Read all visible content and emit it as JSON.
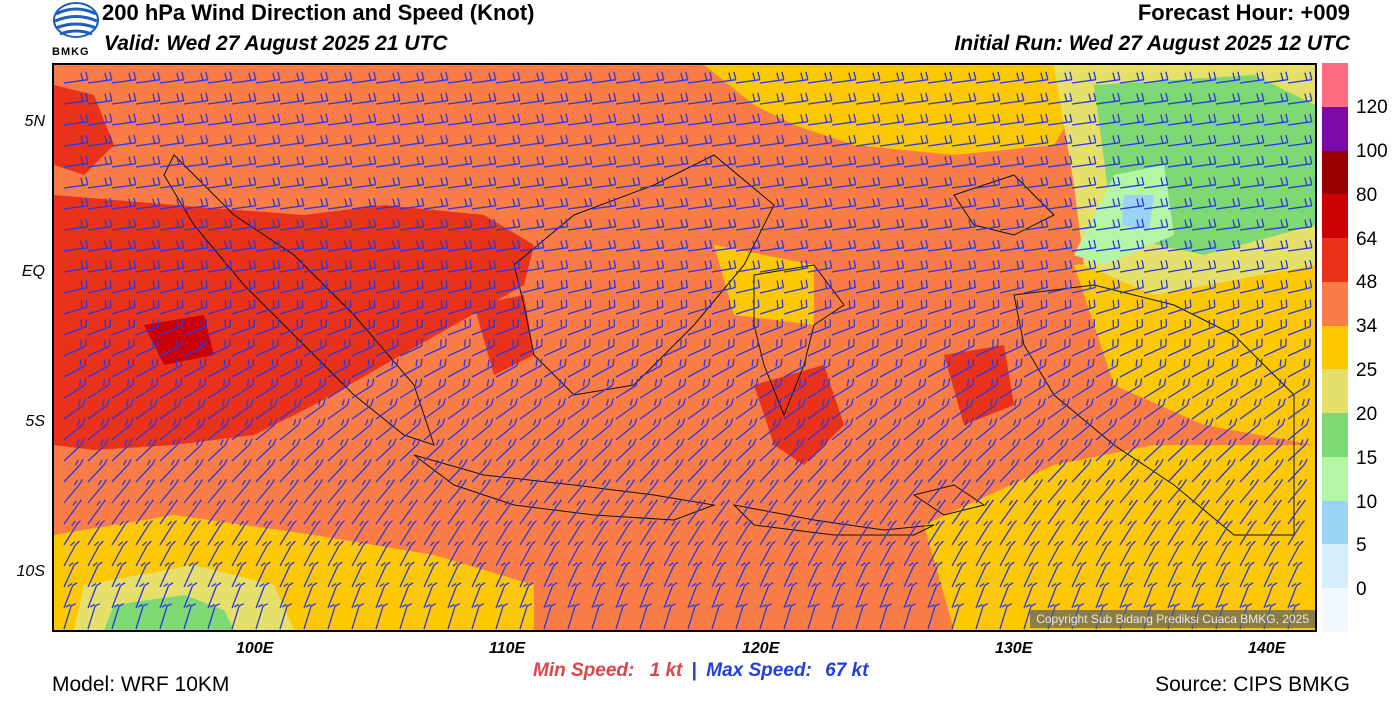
{
  "header": {
    "title": "200 hPa Wind Direction and Speed (Knot)",
    "valid": "Valid: Wed 27 August 2025 21 UTC",
    "forecast_hour": "Forecast Hour: +009",
    "initial_run": "Initial Run: Wed 27 August 2025 12 UTC",
    "logo_text": "BMKG"
  },
  "map": {
    "lat_labels": [
      "5N",
      "EQ",
      "5S",
      "10S"
    ],
    "lon_labels": [
      "100E",
      "110E",
      "120E",
      "130E",
      "140E"
    ],
    "copyright": "Copyright Sub Bidang Prediksi Cuaca BMKG, 2025",
    "extent": {
      "lon_min": 92,
      "lon_max": 142,
      "lat_min": -12,
      "lat_max": 7
    }
  },
  "colorbar": {
    "labels": [
      "120",
      "100",
      "80",
      "64",
      "48",
      "34",
      "25",
      "20",
      "15",
      "10",
      "5",
      "0"
    ],
    "colors": [
      "#ff6b7f",
      "#7b0aa8",
      "#9b0000",
      "#cc0000",
      "#e8321a",
      "#fa7d47",
      "#fcc802",
      "#e6e06a",
      "#7ed874",
      "#b4f5a6",
      "#9bd3f7",
      "#d6eefc",
      "#f2f9ff"
    ]
  },
  "footer": {
    "min_label": "Min Speed:",
    "min_value": "1 kt",
    "separator": "|",
    "max_label": "Max Speed:",
    "max_value": "67 kt",
    "model": "Model: WRF 10KM",
    "source": "Source: CIPS BMKG"
  }
}
